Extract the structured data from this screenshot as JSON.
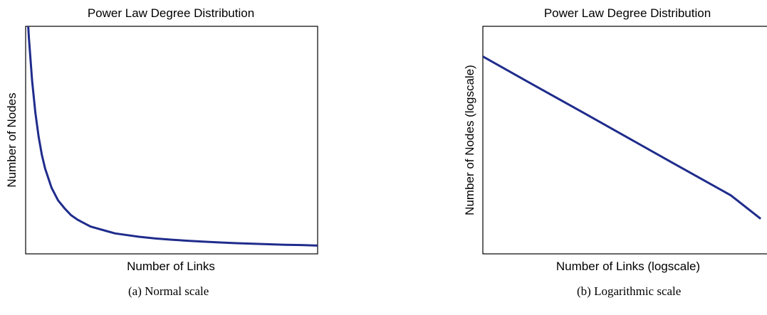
{
  "chart_data": [
    {
      "type": "line",
      "title": "Power Law Degree Distribution",
      "xlabel": "Number of Links",
      "ylabel": "Number of Nodes",
      "caption": "(a) Normal scale",
      "x_scale": "linear",
      "y_scale": "linear",
      "grid": false,
      "xlim": [
        1,
        10
      ],
      "ylim": [
        0,
        0.2
      ],
      "series": [
        {
          "color": "#1f2c8c",
          "x": [
            1.08,
            1.1,
            1.2,
            1.3,
            1.4,
            1.5,
            1.6,
            1.8,
            2.0,
            2.2,
            2.4,
            2.6,
            2.8,
            3.0,
            3.25,
            3.5,
            3.75,
            4.0,
            4.5,
            5.0,
            5.5,
            6.0,
            6.5,
            7.0,
            7.5,
            8.0,
            8.5,
            9.0,
            9.5,
            10.0
          ],
          "y": [
            0.2,
            0.19,
            0.152,
            0.124,
            0.103,
            0.087,
            0.075,
            0.058,
            0.047,
            0.04,
            0.034,
            0.03,
            0.027,
            0.024,
            0.022,
            0.02,
            0.018,
            0.017,
            0.015,
            0.0135,
            0.0124,
            0.0115,
            0.0107,
            0.01,
            0.0094,
            0.0089,
            0.0084,
            0.008,
            0.0077,
            0.0073
          ]
        }
      ]
    },
    {
      "type": "line",
      "title": "Power Law Degree Distribution",
      "xlabel": "Number of Links (logscale)",
      "ylabel": "Number of Nodes (logscale)",
      "caption": "(b) Logarithmic scale",
      "x_scale": "log",
      "y_scale": "log",
      "grid": false,
      "xlim": [
        1,
        100
      ],
      "ylim": [
        0.001,
        1
      ],
      "series": [
        {
          "color": "#1f2c8c",
          "x": [
            1,
            2,
            5,
            10,
            20,
            50,
            80
          ],
          "y": [
            0.4,
            0.189,
            0.0707,
            0.0334,
            0.0158,
            0.0059,
            0.0029
          ]
        }
      ]
    }
  ]
}
